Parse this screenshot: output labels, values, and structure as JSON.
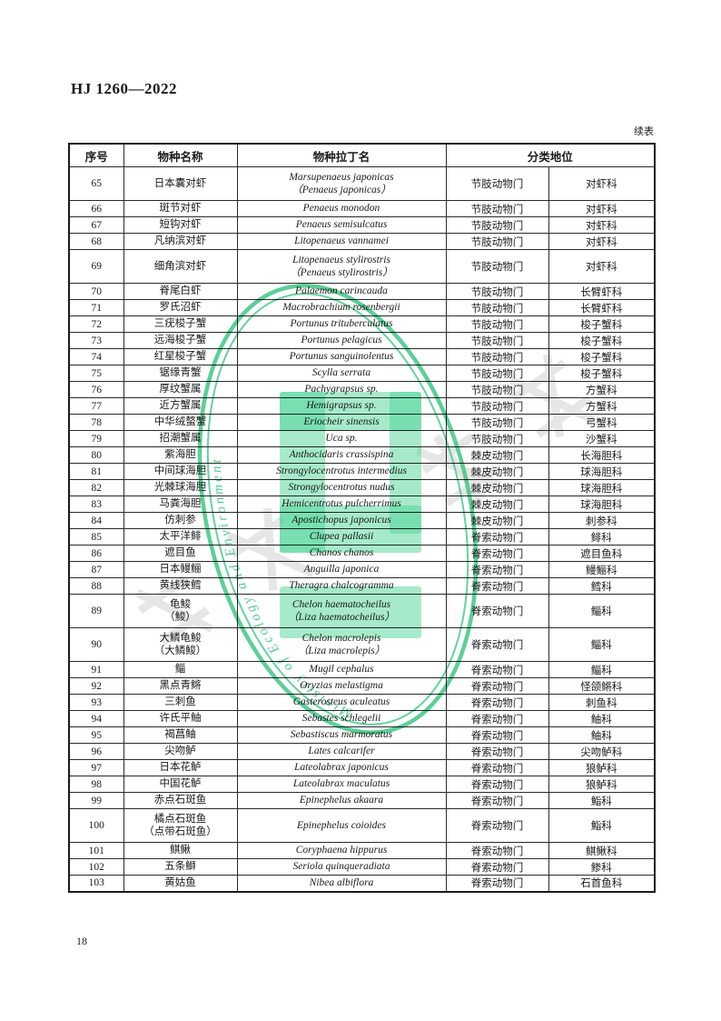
{
  "page": {
    "doc_code": "HJ 1260—2022",
    "continuation_note": "续表",
    "page_number": "18"
  },
  "table": {
    "headers": {
      "no": "序号",
      "name": "物种名称",
      "latin": "物种拉丁名",
      "taxonomy": "分类地位"
    },
    "rows": [
      {
        "no": "65",
        "name": [
          "日本囊对虾"
        ],
        "latin": [
          "Marsupenaeus japonicas",
          "（Penaeus japonicas）"
        ],
        "phylum": "节肢动物门",
        "family": "对虾科"
      },
      {
        "no": "66",
        "name": [
          "斑节对虾"
        ],
        "latin": [
          "Penaeus monodon"
        ],
        "phylum": "节肢动物门",
        "family": "对虾科"
      },
      {
        "no": "67",
        "name": [
          "短钩对虾"
        ],
        "latin": [
          "Penaeus semisulcatus"
        ],
        "phylum": "节肢动物门",
        "family": "对虾科"
      },
      {
        "no": "68",
        "name": [
          "凡纳滨对虾"
        ],
        "latin": [
          "Litopenaeus vannamei"
        ],
        "phylum": "节肢动物门",
        "family": "对虾科"
      },
      {
        "no": "69",
        "name": [
          "细角滨对虾"
        ],
        "latin": [
          "Litopenaeus stylirostris",
          "（Penaeus stylirostris）"
        ],
        "phylum": "节肢动物门",
        "family": "对虾科"
      },
      {
        "no": "70",
        "name": [
          "脊尾白虾"
        ],
        "latin": [
          "Palaemon carincauda"
        ],
        "phylum": "节肢动物门",
        "family": "长臂虾科"
      },
      {
        "no": "71",
        "name": [
          "罗氏沼虾"
        ],
        "latin": [
          "Macrobrachium rosenbergii"
        ],
        "phylum": "节肢动物门",
        "family": "长臂虾科"
      },
      {
        "no": "72",
        "name": [
          "三疣梭子蟹"
        ],
        "latin": [
          "Portunus trituberculatus"
        ],
        "phylum": "节肢动物门",
        "family": "梭子蟹科"
      },
      {
        "no": "73",
        "name": [
          "远海梭子蟹"
        ],
        "latin": [
          "Portunus pelagicus"
        ],
        "phylum": "节肢动物门",
        "family": "梭子蟹科"
      },
      {
        "no": "74",
        "name": [
          "红星梭子蟹"
        ],
        "latin": [
          "Portunus sanguinolentus"
        ],
        "phylum": "节肢动物门",
        "family": "梭子蟹科"
      },
      {
        "no": "75",
        "name": [
          "锯缘青蟹"
        ],
        "latin": [
          "Scylla serrata"
        ],
        "phylum": "节肢动物门",
        "family": "梭子蟹科"
      },
      {
        "no": "76",
        "name": [
          "厚纹蟹属"
        ],
        "latin": [
          "Pachygrapsus sp."
        ],
        "phylum": "节肢动物门",
        "family": "方蟹科"
      },
      {
        "no": "77",
        "name": [
          "近方蟹属"
        ],
        "latin": [
          "Hemigrapsus sp."
        ],
        "phylum": "节肢动物门",
        "family": "方蟹科"
      },
      {
        "no": "78",
        "name": [
          "中华绒螯蟹"
        ],
        "latin": [
          "Eriocheir sinensis"
        ],
        "phylum": "节肢动物门",
        "family": "弓蟹科"
      },
      {
        "no": "79",
        "name": [
          "招潮蟹属"
        ],
        "latin": [
          "Uca sp."
        ],
        "phylum": "节肢动物门",
        "family": "沙蟹科"
      },
      {
        "no": "80",
        "name": [
          "紫海胆"
        ],
        "latin": [
          "Anthocidaris crassispina"
        ],
        "phylum": "棘皮动物门",
        "family": "长海胆科"
      },
      {
        "no": "81",
        "name": [
          "中间球海胆"
        ],
        "latin": [
          "Strongylocentrotus intermedius"
        ],
        "phylum": "棘皮动物门",
        "family": "球海胆科"
      },
      {
        "no": "82",
        "name": [
          "光棘球海胆"
        ],
        "latin": [
          "Strongylocentrotus nudus"
        ],
        "phylum": "棘皮动物门",
        "family": "球海胆科"
      },
      {
        "no": "83",
        "name": [
          "马粪海胆"
        ],
        "latin": [
          "Hemicentrotus pulcherrimus"
        ],
        "phylum": "棘皮动物门",
        "family": "球海胆科"
      },
      {
        "no": "84",
        "name": [
          "仿刺参"
        ],
        "latin": [
          "Apostichopus japonicus"
        ],
        "phylum": "棘皮动物门",
        "family": "刺参科"
      },
      {
        "no": "85",
        "name": [
          "太平洋鲱"
        ],
        "latin": [
          "Clupea pallasii"
        ],
        "phylum": "脊索动物门",
        "family": "鲱科"
      },
      {
        "no": "86",
        "name": [
          "遮目鱼"
        ],
        "latin": [
          "Chanos chanos"
        ],
        "phylum": "脊索动物门",
        "family": "遮目鱼科"
      },
      {
        "no": "87",
        "name": [
          "日本鳗鲡"
        ],
        "latin": [
          "Anguilla japonica"
        ],
        "phylum": "脊索动物门",
        "family": "鳗鲡科"
      },
      {
        "no": "88",
        "name": [
          "黄线狭鳕"
        ],
        "latin": [
          "Theragra chalcogramma"
        ],
        "phylum": "脊索动物门",
        "family": "鳕科"
      },
      {
        "no": "89",
        "name": [
          "龟鮻",
          "（鮻）"
        ],
        "latin": [
          "Chelon haematocheilus",
          "（Liza haematocheilus）"
        ],
        "phylum": "脊索动物门",
        "family": "鲻科"
      },
      {
        "no": "90",
        "name": [
          "大鳞龟鮻",
          "（大鳞鮻）"
        ],
        "latin": [
          "Chelon macrolepis",
          "（Liza macrolepis）"
        ],
        "phylum": "脊索动物门",
        "family": "鲻科"
      },
      {
        "no": "91",
        "name": [
          "鲻"
        ],
        "latin": [
          "Mugil cephalus"
        ],
        "phylum": "脊索动物门",
        "family": "鲻科"
      },
      {
        "no": "92",
        "name": [
          "黑点青鳉"
        ],
        "latin": [
          "Oryzias melastigma"
        ],
        "phylum": "脊索动物门",
        "family": "怪颌鳉科"
      },
      {
        "no": "93",
        "name": [
          "三刺鱼"
        ],
        "latin": [
          "Gasterosteus aculeatus"
        ],
        "phylum": "脊索动物门",
        "family": "刺鱼科"
      },
      {
        "no": "94",
        "name": [
          "许氏平鲉"
        ],
        "latin": [
          "Sebastes schlegelii"
        ],
        "phylum": "脊索动物门",
        "family": "鲉科"
      },
      {
        "no": "95",
        "name": [
          "褐菖鲉"
        ],
        "latin": [
          "Sebastiscus marmoratus"
        ],
        "phylum": "脊索动物门",
        "family": "鲉科"
      },
      {
        "no": "96",
        "name": [
          "尖吻鲈"
        ],
        "latin": [
          "Lates calcarifer"
        ],
        "phylum": "脊索动物门",
        "family": "尖吻鲈科"
      },
      {
        "no": "97",
        "name": [
          "日本花鲈"
        ],
        "latin": [
          "Lateolabrax japonicus"
        ],
        "phylum": "脊索动物门",
        "family": "狼鲈科"
      },
      {
        "no": "98",
        "name": [
          "中国花鲈"
        ],
        "latin": [
          "Lateolabrax maculatus"
        ],
        "phylum": "脊索动物门",
        "family": "狼鲈科"
      },
      {
        "no": "99",
        "name": [
          "赤点石斑鱼"
        ],
        "latin": [
          "Epinephelus akaara"
        ],
        "phylum": "脊索动物门",
        "family": "鮨科"
      },
      {
        "no": "100",
        "name": [
          "橘点石斑鱼",
          "（点带石斑鱼）"
        ],
        "latin": [
          "Epinephelus coioides"
        ],
        "phylum": "脊索动物门",
        "family": "鮨科"
      },
      {
        "no": "101",
        "name": [
          "鲯鳅"
        ],
        "latin": [
          "Coryphaena hippurus"
        ],
        "phylum": "脊索动物门",
        "family": "鲯鳅科"
      },
      {
        "no": "102",
        "name": [
          "五条鰤"
        ],
        "latin": [
          "Seriola quinqueradiata"
        ],
        "phylum": "脊索动物门",
        "family": "鲹科"
      },
      {
        "no": "103",
        "name": [
          "黄姑鱼"
        ],
        "latin": [
          "Nibea albiflora"
        ],
        "phylum": "脊索动物门",
        "family": "石首鱼科"
      }
    ]
  },
  "watermark": {
    "seal_text": "Ministry of Ecology and Environment",
    "seal_color": "#3fc786",
    "emblem_color": "#47d492",
    "stamp_gray": "#bdbdbd"
  }
}
